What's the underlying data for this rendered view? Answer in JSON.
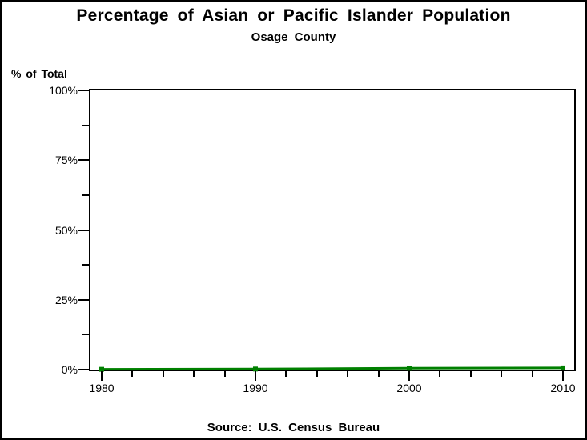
{
  "colors": {
    "background": "#ffffff",
    "frame_border": "#000000",
    "axis": "#000000",
    "text": "#000000",
    "line": "#008000"
  },
  "chart_data": {
    "type": "line",
    "title": "Percentage of Asian or Pacific Islander Population",
    "subtitle": "Osage County",
    "ylabel": "% of Total",
    "source": "Source: U.S. Census Bureau",
    "series": [
      {
        "name": "Asian or Pacific Islander",
        "x": [
          1980,
          1990,
          2000,
          2010
        ],
        "values": [
          0.1,
          0.2,
          0.5,
          0.6
        ]
      }
    ],
    "x": [
      1980,
      1990,
      2000,
      2010
    ],
    "values": [
      0.1,
      0.2,
      0.5,
      0.6
    ],
    "xlim": [
      1979.27,
      2010.73
    ],
    "ylim": [
      0,
      100
    ],
    "y_major_ticks": [
      0,
      25,
      50,
      75,
      100
    ],
    "y_tick_labels": [
      "0%",
      "25%",
      "50%",
      "75%",
      "100%"
    ],
    "y_minor_ticks": [
      12.5,
      37.5,
      62.5,
      87.5
    ],
    "x_major_ticks": [
      1980,
      1990,
      2000,
      2010
    ],
    "x_tick_labels": [
      "1980",
      "1990",
      "2000",
      "2010"
    ],
    "x_minor_step": 2,
    "grid": false,
    "legend": "none",
    "line_color": "#008000",
    "marker": "square"
  }
}
